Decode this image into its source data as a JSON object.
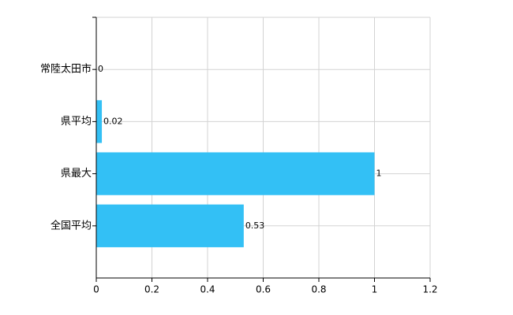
{
  "chart_data": {
    "type": "bar",
    "orientation": "horizontal",
    "categories": [
      "常陸太田市",
      "県平均",
      "県最大",
      "全国平均"
    ],
    "values": [
      0,
      0.02,
      1,
      0.53
    ],
    "color": "#33c0f5",
    "xlim": [
      0,
      1.2
    ],
    "xticks": [
      0,
      0.2,
      0.4,
      0.6,
      0.8,
      1,
      1.2
    ],
    "grid": true
  }
}
